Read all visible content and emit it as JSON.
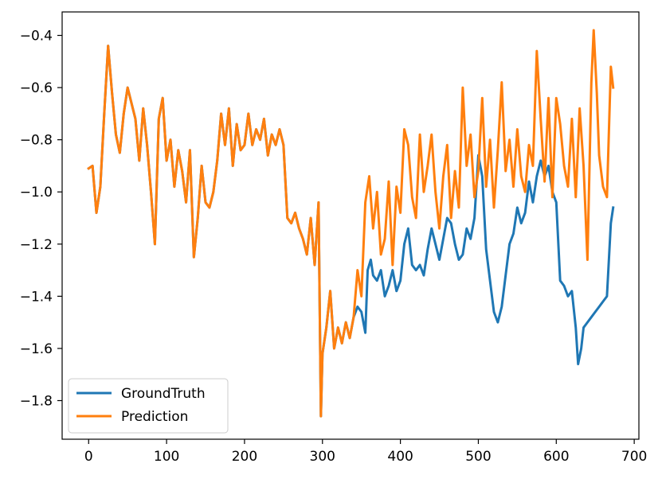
{
  "chart_data": {
    "type": "line",
    "title": "",
    "xlabel": "",
    "ylabel": "",
    "xlim": [
      -34,
      706
    ],
    "ylim": [
      -1.948,
      -0.31
    ],
    "x_ticks": [
      0,
      100,
      200,
      300,
      400,
      500,
      600,
      700
    ],
    "x_tick_labels": [
      "0",
      "100",
      "200",
      "300",
      "400",
      "500",
      "600",
      "700"
    ],
    "y_ticks": [
      -1.8,
      -1.6,
      -1.4,
      -1.2,
      -1.0,
      -0.8,
      -0.6,
      -0.4
    ],
    "y_tick_labels": [
      "−1.8",
      "−1.6",
      "−1.4",
      "−1.2",
      "−1.0",
      "−0.8",
      "−0.6",
      "−0.4"
    ],
    "grid": false,
    "legend_position": "lower-left",
    "series": [
      {
        "name": "GroundTruth",
        "color": "#1f77b4",
        "points": [
          [
            0,
            -0.91
          ],
          [
            5,
            -0.9
          ],
          [
            10,
            -1.08
          ],
          [
            15,
            -0.98
          ],
          [
            20,
            -0.7
          ],
          [
            25,
            -0.44
          ],
          [
            30,
            -0.62
          ],
          [
            35,
            -0.78
          ],
          [
            40,
            -0.85
          ],
          [
            45,
            -0.7
          ],
          [
            50,
            -0.6
          ],
          [
            55,
            -0.66
          ],
          [
            60,
            -0.72
          ],
          [
            65,
            -0.88
          ],
          [
            70,
            -0.68
          ],
          [
            75,
            -0.82
          ],
          [
            80,
            -1.0
          ],
          [
            85,
            -1.2
          ],
          [
            90,
            -0.72
          ],
          [
            95,
            -0.64
          ],
          [
            100,
            -0.88
          ],
          [
            105,
            -0.8
          ],
          [
            110,
            -0.98
          ],
          [
            115,
            -0.84
          ],
          [
            120,
            -0.92
          ],
          [
            125,
            -1.04
          ],
          [
            130,
            -0.84
          ],
          [
            135,
            -1.25
          ],
          [
            140,
            -1.1
          ],
          [
            145,
            -0.9
          ],
          [
            150,
            -1.04
          ],
          [
            155,
            -1.06
          ],
          [
            160,
            -1.0
          ],
          [
            165,
            -0.88
          ],
          [
            170,
            -0.7
          ],
          [
            175,
            -0.82
          ],
          [
            180,
            -0.68
          ],
          [
            185,
            -0.9
          ],
          [
            190,
            -0.74
          ],
          [
            195,
            -0.84
          ],
          [
            200,
            -0.82
          ],
          [
            205,
            -0.7
          ],
          [
            210,
            -0.82
          ],
          [
            215,
            -0.76
          ],
          [
            220,
            -0.8
          ],
          [
            225,
            -0.72
          ],
          [
            230,
            -0.86
          ],
          [
            235,
            -0.78
          ],
          [
            240,
            -0.82
          ],
          [
            245,
            -0.76
          ],
          [
            250,
            -0.82
          ],
          [
            255,
            -1.1
          ],
          [
            260,
            -1.12
          ],
          [
            265,
            -1.08
          ],
          [
            270,
            -1.14
          ],
          [
            275,
            -1.18
          ],
          [
            280,
            -1.24
          ],
          [
            285,
            -1.1
          ],
          [
            290,
            -1.28
          ],
          [
            295,
            -1.04
          ],
          [
            298,
            -1.86
          ],
          [
            300,
            -1.62
          ],
          [
            305,
            -1.52
          ],
          [
            310,
            -1.38
          ],
          [
            315,
            -1.6
          ],
          [
            320,
            -1.52
          ],
          [
            325,
            -1.58
          ],
          [
            330,
            -1.5
          ],
          [
            335,
            -1.56
          ],
          [
            340,
            -1.48
          ],
          [
            345,
            -1.44
          ],
          [
            350,
            -1.46
          ],
          [
            355,
            -1.54
          ],
          [
            358,
            -1.3
          ],
          [
            362,
            -1.26
          ],
          [
            365,
            -1.32
          ],
          [
            370,
            -1.34
          ],
          [
            375,
            -1.3
          ],
          [
            380,
            -1.4
          ],
          [
            385,
            -1.36
          ],
          [
            390,
            -1.3
          ],
          [
            395,
            -1.38
          ],
          [
            400,
            -1.34
          ],
          [
            405,
            -1.2
          ],
          [
            410,
            -1.14
          ],
          [
            415,
            -1.28
          ],
          [
            420,
            -1.3
          ],
          [
            425,
            -1.28
          ],
          [
            430,
            -1.32
          ],
          [
            435,
            -1.22
          ],
          [
            440,
            -1.14
          ],
          [
            445,
            -1.2
          ],
          [
            450,
            -1.26
          ],
          [
            455,
            -1.18
          ],
          [
            460,
            -1.1
          ],
          [
            465,
            -1.12
          ],
          [
            470,
            -1.2
          ],
          [
            475,
            -1.26
          ],
          [
            480,
            -1.24
          ],
          [
            485,
            -1.14
          ],
          [
            490,
            -1.18
          ],
          [
            495,
            -1.1
          ],
          [
            500,
            -0.86
          ],
          [
            505,
            -0.94
          ],
          [
            510,
            -1.22
          ],
          [
            515,
            -1.34
          ],
          [
            520,
            -1.46
          ],
          [
            525,
            -1.5
          ],
          [
            530,
            -1.44
          ],
          [
            535,
            -1.32
          ],
          [
            540,
            -1.2
          ],
          [
            545,
            -1.16
          ],
          [
            550,
            -1.06
          ],
          [
            555,
            -1.12
          ],
          [
            560,
            -1.08
          ],
          [
            565,
            -0.96
          ],
          [
            570,
            -1.04
          ],
          [
            575,
            -0.94
          ],
          [
            580,
            -0.88
          ],
          [
            585,
            -0.94
          ],
          [
            590,
            -0.9
          ],
          [
            595,
            -1.0
          ],
          [
            600,
            -1.04
          ],
          [
            605,
            -1.34
          ],
          [
            610,
            -1.36
          ],
          [
            615,
            -1.4
          ],
          [
            620,
            -1.38
          ],
          [
            625,
            -1.52
          ],
          [
            628,
            -1.66
          ],
          [
            632,
            -1.6
          ],
          [
            635,
            -1.52
          ],
          [
            640,
            -1.5
          ],
          [
            645,
            -1.48
          ],
          [
            650,
            -1.46
          ],
          [
            655,
            -1.44
          ],
          [
            660,
            -1.42
          ],
          [
            665,
            -1.4
          ],
          [
            670,
            -1.12
          ],
          [
            673,
            -1.06
          ]
        ]
      },
      {
        "name": "Prediction",
        "color": "#ff7f0e",
        "points": [
          [
            0,
            -0.91
          ],
          [
            5,
            -0.9
          ],
          [
            10,
            -1.08
          ],
          [
            15,
            -0.98
          ],
          [
            20,
            -0.7
          ],
          [
            25,
            -0.44
          ],
          [
            30,
            -0.62
          ],
          [
            35,
            -0.78
          ],
          [
            40,
            -0.85
          ],
          [
            45,
            -0.7
          ],
          [
            50,
            -0.6
          ],
          [
            55,
            -0.66
          ],
          [
            60,
            -0.72
          ],
          [
            65,
            -0.88
          ],
          [
            70,
            -0.68
          ],
          [
            75,
            -0.82
          ],
          [
            80,
            -1.0
          ],
          [
            85,
            -1.2
          ],
          [
            90,
            -0.72
          ],
          [
            95,
            -0.64
          ],
          [
            100,
            -0.88
          ],
          [
            105,
            -0.8
          ],
          [
            110,
            -0.98
          ],
          [
            115,
            -0.84
          ],
          [
            120,
            -0.92
          ],
          [
            125,
            -1.04
          ],
          [
            130,
            -0.84
          ],
          [
            135,
            -1.25
          ],
          [
            140,
            -1.1
          ],
          [
            145,
            -0.9
          ],
          [
            150,
            -1.04
          ],
          [
            155,
            -1.06
          ],
          [
            160,
            -1.0
          ],
          [
            165,
            -0.88
          ],
          [
            170,
            -0.7
          ],
          [
            175,
            -0.82
          ],
          [
            180,
            -0.68
          ],
          [
            185,
            -0.9
          ],
          [
            190,
            -0.74
          ],
          [
            195,
            -0.84
          ],
          [
            200,
            -0.82
          ],
          [
            205,
            -0.7
          ],
          [
            210,
            -0.82
          ],
          [
            215,
            -0.76
          ],
          [
            220,
            -0.8
          ],
          [
            225,
            -0.72
          ],
          [
            230,
            -0.86
          ],
          [
            235,
            -0.78
          ],
          [
            240,
            -0.82
          ],
          [
            245,
            -0.76
          ],
          [
            250,
            -0.82
          ],
          [
            255,
            -1.1
          ],
          [
            260,
            -1.12
          ],
          [
            265,
            -1.08
          ],
          [
            270,
            -1.14
          ],
          [
            275,
            -1.18
          ],
          [
            280,
            -1.24
          ],
          [
            285,
            -1.1
          ],
          [
            290,
            -1.28
          ],
          [
            295,
            -1.04
          ],
          [
            298,
            -1.86
          ],
          [
            300,
            -1.62
          ],
          [
            305,
            -1.52
          ],
          [
            310,
            -1.38
          ],
          [
            315,
            -1.6
          ],
          [
            320,
            -1.52
          ],
          [
            325,
            -1.58
          ],
          [
            330,
            -1.5
          ],
          [
            335,
            -1.56
          ],
          [
            340,
            -1.48
          ],
          [
            345,
            -1.3
          ],
          [
            350,
            -1.4
          ],
          [
            355,
            -1.04
          ],
          [
            360,
            -0.94
          ],
          [
            365,
            -1.14
          ],
          [
            370,
            -1.0
          ],
          [
            375,
            -1.24
          ],
          [
            380,
            -1.18
          ],
          [
            385,
            -0.96
          ],
          [
            390,
            -1.28
          ],
          [
            395,
            -0.98
          ],
          [
            400,
            -1.08
          ],
          [
            405,
            -0.76
          ],
          [
            410,
            -0.82
          ],
          [
            415,
            -1.02
          ],
          [
            420,
            -1.1
          ],
          [
            425,
            -0.78
          ],
          [
            430,
            -1.0
          ],
          [
            435,
            -0.9
          ],
          [
            440,
            -0.78
          ],
          [
            445,
            -1.0
          ],
          [
            450,
            -1.14
          ],
          [
            455,
            -0.94
          ],
          [
            460,
            -0.82
          ],
          [
            465,
            -1.1
          ],
          [
            470,
            -0.92
          ],
          [
            475,
            -1.06
          ],
          [
            480,
            -0.6
          ],
          [
            485,
            -0.9
          ],
          [
            490,
            -0.78
          ],
          [
            495,
            -1.02
          ],
          [
            500,
            -0.92
          ],
          [
            505,
            -0.64
          ],
          [
            510,
            -0.98
          ],
          [
            515,
            -0.8
          ],
          [
            520,
            -1.06
          ],
          [
            525,
            -0.84
          ],
          [
            530,
            -0.58
          ],
          [
            535,
            -0.92
          ],
          [
            540,
            -0.8
          ],
          [
            545,
            -0.98
          ],
          [
            550,
            -0.76
          ],
          [
            555,
            -0.94
          ],
          [
            560,
            -1.0
          ],
          [
            565,
            -0.82
          ],
          [
            570,
            -0.9
          ],
          [
            575,
            -0.46
          ],
          [
            580,
            -0.72
          ],
          [
            585,
            -0.96
          ],
          [
            590,
            -0.64
          ],
          [
            595,
            -1.02
          ],
          [
            600,
            -0.64
          ],
          [
            605,
            -0.74
          ],
          [
            610,
            -0.9
          ],
          [
            615,
            -0.98
          ],
          [
            620,
            -0.72
          ],
          [
            625,
            -1.02
          ],
          [
            630,
            -0.68
          ],
          [
            635,
            -0.9
          ],
          [
            640,
            -1.26
          ],
          [
            645,
            -0.58
          ],
          [
            648,
            -0.38
          ],
          [
            652,
            -0.62
          ],
          [
            655,
            -0.86
          ],
          [
            660,
            -0.98
          ],
          [
            665,
            -1.02
          ],
          [
            670,
            -0.52
          ],
          [
            673,
            -0.6
          ]
        ]
      }
    ]
  }
}
